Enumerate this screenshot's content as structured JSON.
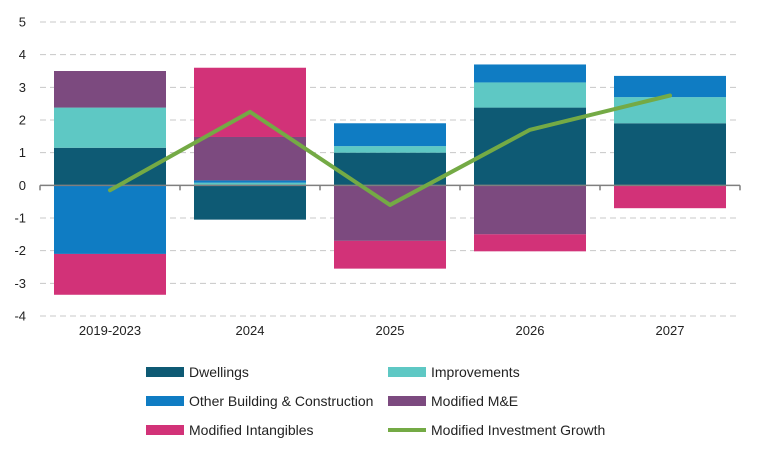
{
  "chart_data": {
    "type": "bar",
    "stacked": true,
    "title": "",
    "xlabel": "",
    "ylabel": "",
    "ylim": [
      -4,
      5
    ],
    "yticks": [
      -4,
      -3,
      -2,
      -1,
      0,
      1,
      2,
      3,
      4,
      5
    ],
    "categories": [
      "2019-2023",
      "2024",
      "2025",
      "2026",
      "2027"
    ],
    "grid": true,
    "legend_position": "bottom",
    "series": [
      {
        "name": "Dwellings",
        "color": "#0e5a74",
        "values": [
          1.15,
          -1.05,
          1.0,
          2.38,
          1.9
        ]
      },
      {
        "name": "Improvements",
        "color": "#5ec8c4",
        "values": [
          1.23,
          0.08,
          0.2,
          0.77,
          0.8
        ]
      },
      {
        "name": "Other Building & Construction",
        "color": "#0f7cc3",
        "values": [
          -2.1,
          0.07,
          0.7,
          0.55,
          0.65
        ]
      },
      {
        "name": "Modified M&E",
        "color": "#7c4a7f",
        "values": [
          1.12,
          1.33,
          -1.7,
          -1.5,
          0.0
        ]
      },
      {
        "name": "Modified Intangibles",
        "color": "#d23278",
        "values": [
          -1.25,
          2.12,
          -0.85,
          -0.52,
          -0.7
        ]
      }
    ],
    "line": {
      "name": "Modified Investment Growth",
      "color": "#74aa45",
      "values": [
        -0.15,
        2.25,
        -0.6,
        1.7,
        2.75
      ]
    }
  }
}
